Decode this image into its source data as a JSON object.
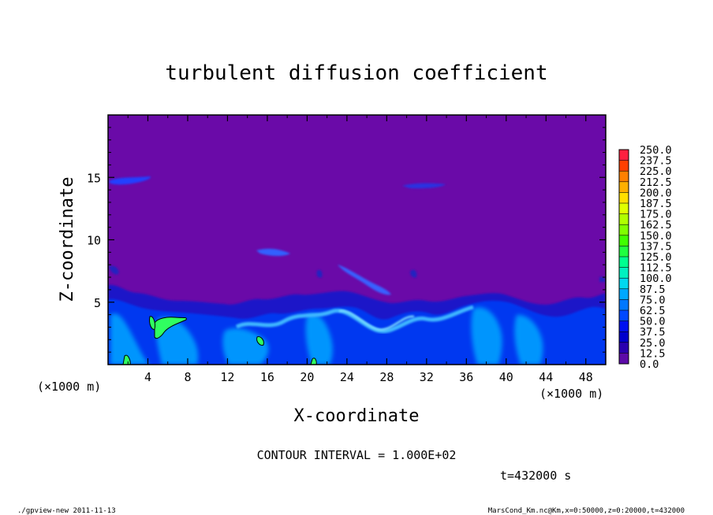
{
  "chart_data": {
    "type": "heatmap",
    "title": "turbulent diffusion coefficient",
    "xlabel": "X-coordinate",
    "ylabel": "Z-coordinate",
    "x_unit": "(×1000 m)",
    "y_unit": "(×1000 m)",
    "xlim": [
      0,
      50
    ],
    "ylim": [
      0,
      20
    ],
    "x_ticks": [
      4,
      8,
      12,
      16,
      20,
      24,
      28,
      32,
      36,
      40,
      44,
      48
    ],
    "y_ticks": [
      5,
      10,
      15
    ],
    "colorbar_levels": [
      "0.0",
      "12.5",
      "25.0",
      "37.5",
      "50.0",
      "62.5",
      "75.0",
      "87.5",
      "100.0",
      "112.5",
      "125.0",
      "137.5",
      "150.0",
      "162.5",
      "175.0",
      "187.5",
      "200.0",
      "212.5",
      "225.0",
      "237.5",
      "250.0"
    ],
    "colorbar_colors": [
      "#5c0aa8",
      "#2a00b0",
      "#0000cd",
      "#0010f0",
      "#0048ff",
      "#0078ff",
      "#00a8ff",
      "#00d8f0",
      "#00f0c0",
      "#00ff90",
      "#20ff40",
      "#40ff00",
      "#80ff00",
      "#b0ff00",
      "#e0ff00",
      "#ffe000",
      "#ffb000",
      "#ff8000",
      "#ff4000",
      "#ff2040",
      "#ff80a0"
    ],
    "background_color": "#6a0aa8",
    "contour_interval_text": "CONTOUR INTERVAL = 1.000E+02",
    "time_text": "t=432000 s"
  },
  "footer": {
    "left": "./gpview-new 2011-11-13",
    "right": "MarsCond_Km.nc@Km,x=0:50000,z=0:20000,t=432000"
  }
}
